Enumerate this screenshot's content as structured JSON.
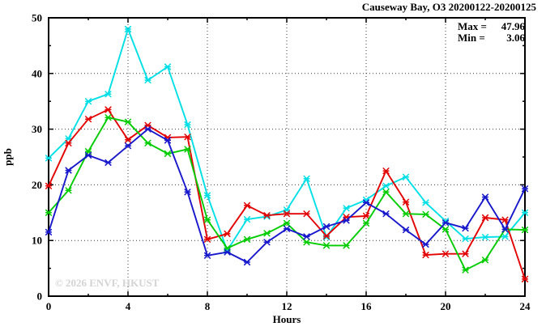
{
  "chart_data": {
    "type": "line",
    "title": "Causeway Bay, O3 20200122-20200125",
    "xlabel": "Hours",
    "ylabel": "ppb",
    "xlim": [
      0,
      24
    ],
    "ylim": [
      0,
      50
    ],
    "xticks_major": [
      0,
      4,
      8,
      12,
      16,
      20,
      24
    ],
    "xticks_minor_step": 2,
    "yticks_major": [
      0,
      10,
      20,
      30,
      40,
      50
    ],
    "yticks_minor_step": 5,
    "grid": "dotted",
    "legend": "none",
    "max": 47.96,
    "min": 3.06,
    "x": [
      0,
      1,
      2,
      3,
      4,
      5,
      6,
      7,
      8,
      9,
      10,
      11,
      12,
      13,
      14,
      15,
      16,
      17,
      18,
      19,
      20,
      21,
      22,
      23,
      24
    ],
    "series": [
      {
        "name": "cyan",
        "color": "#00dfe6",
        "values": [
          24.8,
          28.3,
          35.0,
          36.3,
          47.96,
          38.8,
          41.2,
          30.8,
          18.1,
          8.2,
          13.8,
          14.3,
          15.5,
          21.1,
          10.6,
          15.8,
          17.3,
          19.8,
          21.4,
          16.8,
          13.5,
          10.3,
          10.6,
          10.7,
          15.0
        ]
      },
      {
        "name": "red",
        "color": "#e30000",
        "values": [
          19.8,
          27.5,
          31.8,
          33.5,
          28.1,
          30.7,
          28.5,
          28.6,
          10.2,
          11.2,
          16.3,
          14.5,
          14.8,
          14.8,
          10.8,
          14.2,
          14.4,
          22.5,
          16.9,
          7.4,
          7.6,
          7.6,
          14.1,
          13.7,
          3.06
        ]
      },
      {
        "name": "green",
        "color": "#00cc00",
        "values": [
          15.0,
          19.0,
          26.0,
          32.1,
          31.3,
          27.5,
          25.6,
          26.4,
          13.7,
          8.6,
          10.2,
          11.3,
          13.1,
          9.7,
          9.1,
          9.1,
          13.1,
          18.7,
          14.8,
          14.7,
          12.0,
          4.7,
          6.5,
          12.0,
          11.9
        ]
      },
      {
        "name": "blue",
        "color": "#1717cc",
        "values": [
          11.5,
          22.6,
          25.3,
          24.0,
          27.0,
          30.0,
          28.0,
          18.7,
          7.3,
          7.9,
          6.1,
          9.7,
          12.1,
          10.7,
          12.5,
          13.6,
          16.8,
          14.8,
          11.9,
          9.3,
          13.2,
          12.2,
          17.8,
          12.0,
          19.3
        ]
      }
    ],
    "annotations": {
      "max_label": "Max =",
      "max_value": "47.96",
      "min_label": "Min =",
      "min_value": "3.06"
    },
    "watermark": "© 2026 ENVF, HKUST"
  },
  "colors": {
    "frame": "#000000",
    "grid": "#3a3a3a",
    "text": "#000000",
    "watermark": "#d4d4d4",
    "background": "#ffffff"
  }
}
